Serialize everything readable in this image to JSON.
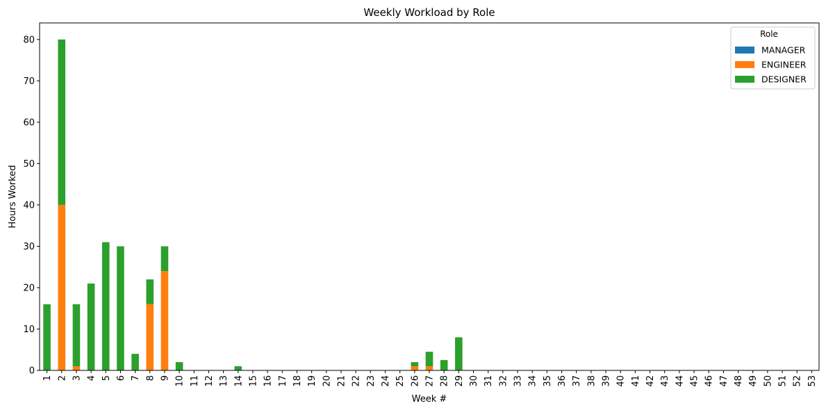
{
  "chart_data": {
    "type": "bar",
    "stacked": true,
    "title": "Weekly Workload by Role",
    "xlabel": "Week #",
    "ylabel": "Hours Worked",
    "ylim": [
      0,
      84
    ],
    "yticks": [
      0,
      10,
      20,
      30,
      40,
      50,
      60,
      70,
      80
    ],
    "grid": false,
    "legend": {
      "title": "Role",
      "placement": "top-right"
    },
    "categories": [
      "1",
      "2",
      "3",
      "4",
      "5",
      "6",
      "7",
      "8",
      "9",
      "10",
      "11",
      "12",
      "13",
      "14",
      "15",
      "16",
      "17",
      "18",
      "19",
      "20",
      "21",
      "22",
      "23",
      "24",
      "25",
      "26",
      "27",
      "28",
      "29",
      "30",
      "31",
      "32",
      "33",
      "34",
      "35",
      "36",
      "37",
      "38",
      "39",
      "40",
      "41",
      "42",
      "43",
      "44",
      "45",
      "46",
      "47",
      "48",
      "49",
      "50",
      "51",
      "52",
      "53"
    ],
    "series": [
      {
        "name": "MANAGER",
        "color": "#1f77b4",
        "values": [
          0,
          0,
          0,
          0,
          0,
          0,
          0,
          0,
          0,
          0,
          0,
          0,
          0,
          0,
          0,
          0,
          0,
          0,
          0,
          0,
          0,
          0,
          0,
          0,
          0,
          0,
          0,
          0,
          0,
          0,
          0,
          0,
          0,
          0,
          0,
          0,
          0,
          0,
          0,
          0,
          0,
          0,
          0,
          0,
          0,
          0,
          0,
          0,
          0,
          0,
          0,
          0,
          0
        ]
      },
      {
        "name": "ENGINEER",
        "color": "#ff7f0e",
        "values": [
          0,
          40,
          1,
          0,
          0,
          0,
          0,
          16,
          24,
          0,
          0,
          0,
          0,
          0,
          0,
          0,
          0,
          0,
          0,
          0,
          0,
          0,
          0,
          0,
          0,
          1,
          1,
          0,
          0,
          0,
          0,
          0,
          0,
          0,
          0,
          0,
          0,
          0,
          0,
          0,
          0,
          0,
          0,
          0,
          0,
          0,
          0,
          0,
          0,
          0,
          0,
          0,
          0
        ]
      },
      {
        "name": "DESIGNER",
        "color": "#2ca02c",
        "values": [
          16,
          40,
          15,
          21,
          31,
          30,
          4,
          6,
          6,
          2,
          0,
          0,
          0,
          1,
          0,
          0,
          0,
          0,
          0,
          0,
          0,
          0,
          0,
          0,
          0,
          1,
          3.5,
          2.5,
          8,
          0,
          0,
          0,
          0,
          0,
          0,
          0,
          0,
          0,
          0,
          0,
          0,
          0,
          0,
          0,
          0,
          0,
          0,
          0,
          0,
          0,
          0,
          0,
          0
        ]
      }
    ]
  }
}
